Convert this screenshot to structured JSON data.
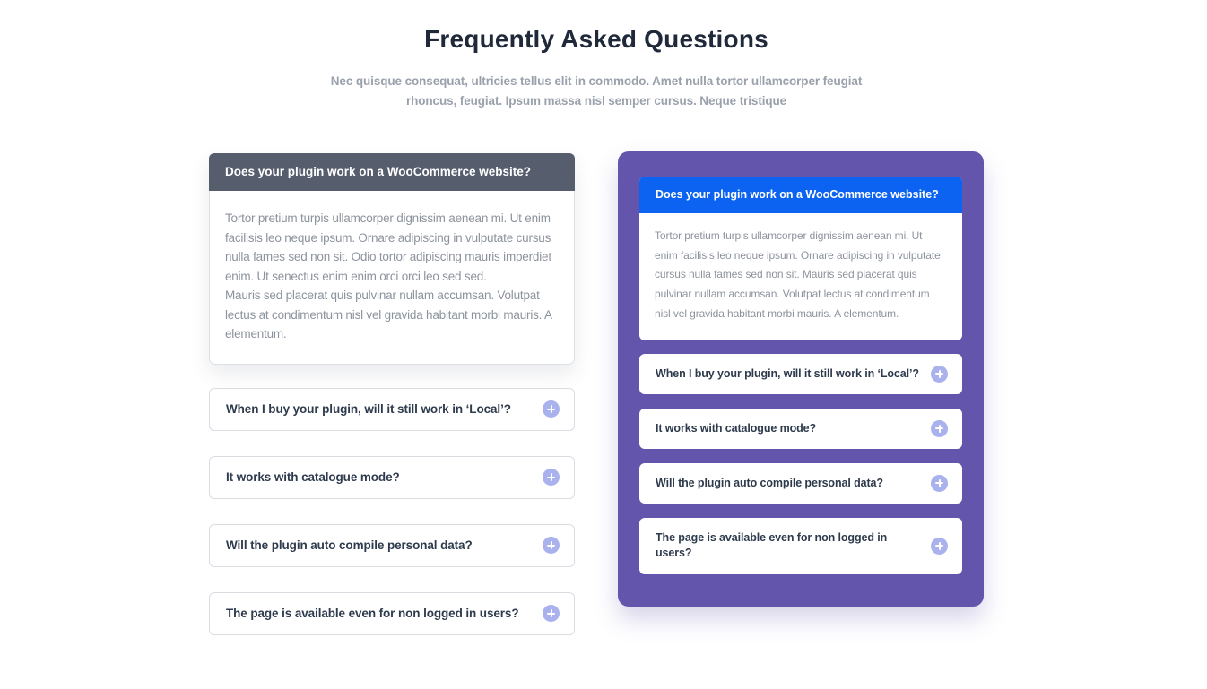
{
  "page": {
    "title": "Frequently Asked Questions",
    "subtitle": "Nec quisque consequat, ultricies tellus elit in commodo. Amet nulla tortor ullamcorper feugiat rhoncus, feugiat. Ipsum massa nisl semper cursus. Neque tristique"
  },
  "colors": {
    "left_open_header_bg": "#565e6e",
    "right_panel_bg": "#6355ab",
    "right_open_header_bg": "#0c63f2",
    "plus_icon_bg": "#a9b2ec",
    "question_text": "#2e3b4d",
    "answer_text": "#8d939d",
    "item_border": "#d9dde2"
  },
  "icons": {
    "expand": "plus-icon"
  },
  "left_accordion": {
    "items": [
      {
        "question": "Does your plugin work on a WooCommerce website?",
        "expanded": true,
        "answer_paragraphs": [
          "Tortor pretium turpis ullamcorper dignissim aenean mi. Ut enim facilisis leo neque ipsum. Ornare adipiscing in vulputate cursus nulla fames sed non sit. Odio tortor adipiscing mauris imperdiet enim. Ut senectus enim enim orci orci leo sed sed.",
          "Mauris sed placerat quis pulvinar nullam accumsan. Volutpat lectus at condimentum nisl vel gravida habitant morbi mauris. A elementum."
        ]
      },
      {
        "question": "When I buy your plugin, will it still work in ‘Local’?",
        "expanded": false
      },
      {
        "question": "It works with catalogue mode?",
        "expanded": false
      },
      {
        "question": "Will the plugin auto compile personal data?",
        "expanded": false
      },
      {
        "question": "The page is available even for non logged in users?",
        "expanded": false
      }
    ]
  },
  "right_accordion": {
    "items": [
      {
        "question": "Does your plugin work on a WooCommerce website?",
        "expanded": true,
        "answer_paragraphs": [
          "Tortor pretium turpis ullamcorper dignissim aenean mi. Ut enim facilisis leo neque ipsum. Ornare adipiscing in vulputate cursus nulla fames sed non sit. Mauris sed placerat quis pulvinar nullam accumsan. Volutpat lectus at condimentum nisl vel gravida habitant morbi mauris. A elementum."
        ]
      },
      {
        "question": "When I buy your plugin, will it still work in ‘Local’?",
        "expanded": false
      },
      {
        "question": "It works with catalogue mode?",
        "expanded": false
      },
      {
        "question": "Will the plugin auto compile personal data?",
        "expanded": false
      },
      {
        "question": "The page is available even for non logged in users?",
        "expanded": false
      }
    ]
  }
}
